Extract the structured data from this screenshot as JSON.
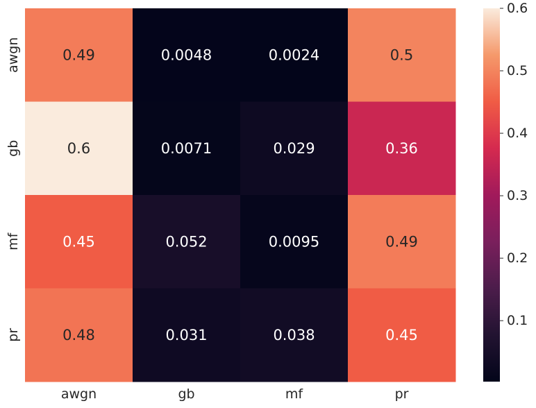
{
  "chart_data": {
    "type": "heatmap",
    "x_categories": [
      "awgn",
      "gb",
      "mf",
      "pr"
    ],
    "y_categories": [
      "awgn",
      "gb",
      "mf",
      "pr"
    ],
    "values": [
      [
        0.49,
        0.0048,
        0.0024,
        0.5
      ],
      [
        0.6,
        0.0071,
        0.029,
        0.36
      ],
      [
        0.45,
        0.052,
        0.0095,
        0.49
      ],
      [
        0.48,
        0.031,
        0.038,
        0.45
      ]
    ],
    "annotations": [
      [
        "0.49",
        "0.0048",
        "0.0024",
        "0.5"
      ],
      [
        "0.6",
        "0.0071",
        "0.029",
        "0.36"
      ],
      [
        "0.45",
        "0.052",
        "0.0095",
        "0.49"
      ],
      [
        "0.48",
        "0.031",
        "0.038",
        "0.45"
      ]
    ],
    "colormap": "rocket",
    "vmin": 0.0024,
    "vmax": 0.6,
    "colorbar_ticks": [
      0.1,
      0.2,
      0.3,
      0.4,
      0.5,
      0.6
    ],
    "colorbar_tick_labels": [
      "0.1",
      "0.2",
      "0.3",
      "0.4",
      "0.5",
      "0.6"
    ],
    "title": "",
    "xlabel": "",
    "ylabel": ""
  }
}
